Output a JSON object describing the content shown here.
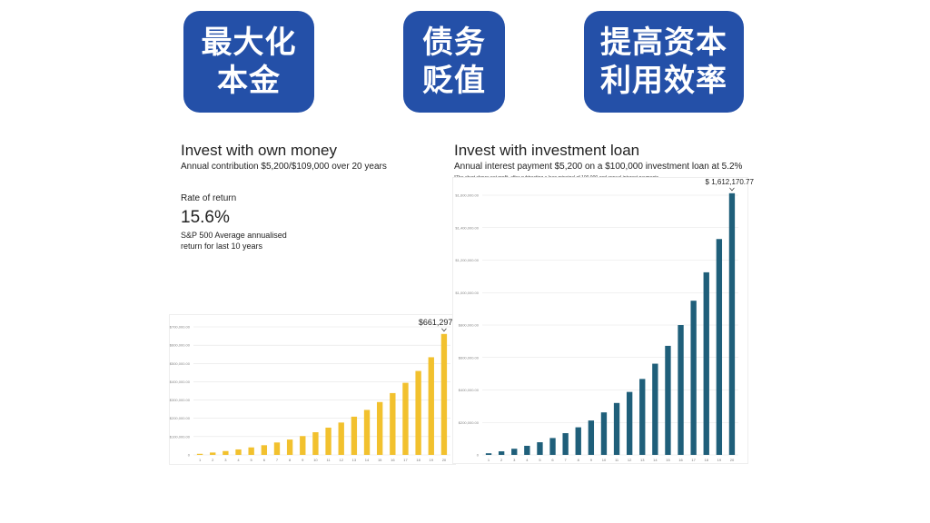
{
  "badges": [
    {
      "line1": "最大化",
      "line2": "本金"
    },
    {
      "line1": "债务",
      "line2": "贬值"
    },
    {
      "line1": "提高资本",
      "line2": "利用效率"
    }
  ],
  "left": {
    "title": "Invest with own money",
    "subtitle": "Annual contribution $5,200/$109,000 over 20 years",
    "rate_label": "Rate of return",
    "rate_value": "15.6%",
    "rate_note_line1": "S&P 500 Average annualised",
    "rate_note_line2": "return for last 10 years"
  },
  "right": {
    "title": "Invest with investment loan",
    "subtitle": "Annual interest payment $5,200 on a $100,000 investment loan at 5.2%",
    "footnote": "*The chart shows net profit, after subtracting a loan principal of 100,000 and annual interest payments."
  },
  "chart_data": [
    {
      "type": "bar",
      "color": "#f2c12e",
      "categories": [
        "1",
        "2",
        "3",
        "4",
        "5",
        "6",
        "7",
        "8",
        "9",
        "10",
        "11",
        "12",
        "13",
        "14",
        "15",
        "16",
        "17",
        "18",
        "19",
        "20"
      ],
      "values": [
        6000,
        13000,
        21000,
        30000,
        41000,
        53000,
        68000,
        84000,
        103000,
        124000,
        149000,
        177000,
        209000,
        246000,
        289000,
        338000,
        394000,
        459000,
        534000,
        661297.8
      ],
      "yticks": [
        0,
        100000,
        200000,
        300000,
        400000,
        500000,
        600000,
        700000
      ],
      "ytick_labels": [
        "0",
        "$100,000.00",
        "$200,000.00",
        "$300,000.00",
        "$400,000.00",
        "$500,000.00",
        "$600,000.00",
        "$700,000.00"
      ],
      "ylim": [
        0,
        700000
      ],
      "annotation": "$661,297.80",
      "grid": true
    },
    {
      "type": "bar",
      "color": "#1f5f7a",
      "categories": [
        "1",
        "2",
        "3",
        "4",
        "5",
        "6",
        "7",
        "8",
        "9",
        "10",
        "11",
        "12",
        "13",
        "14",
        "15",
        "16",
        "17",
        "18",
        "19",
        "20"
      ],
      "values": [
        10000,
        22000,
        38000,
        56000,
        78000,
        104000,
        134000,
        170000,
        212000,
        262000,
        320000,
        388000,
        468000,
        562000,
        672000,
        800000,
        950000,
        1125000,
        1330000,
        1612170.77
      ],
      "yticks": [
        0,
        200000,
        400000,
        600000,
        800000,
        1000000,
        1200000,
        1400000,
        1600000
      ],
      "ytick_labels": [
        "0",
        "$200,000.00",
        "$400,000.00",
        "$600,000.00",
        "$800,000.00",
        "$1,000,000.00",
        "$1,200,000.00",
        "$1,400,000.00",
        "$1,600,000.00"
      ],
      "ylim": [
        0,
        1600000
      ],
      "annotation": "$ 1,612,170.77",
      "grid": true
    }
  ]
}
